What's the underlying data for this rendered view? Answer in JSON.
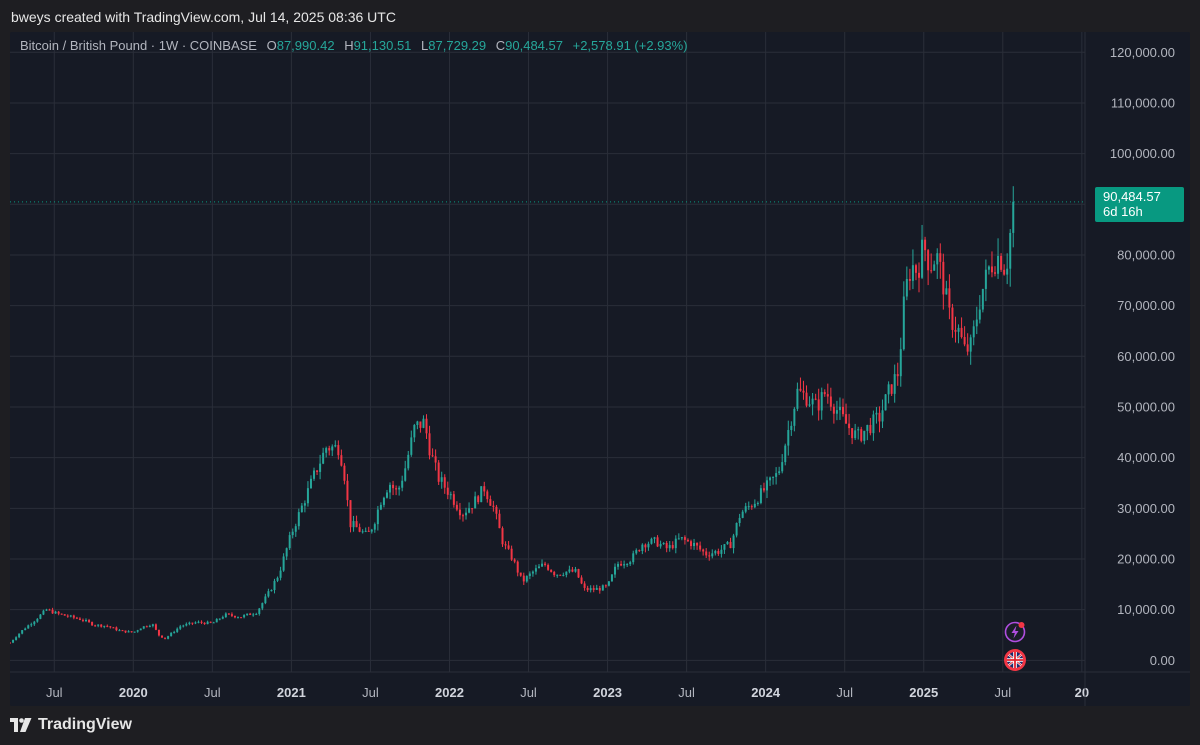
{
  "header": {
    "attribution": "bweys created with TradingView.com, Jul 14, 2025 08:36 UTC"
  },
  "legend": {
    "symbol": "Bitcoin / British Pound · 1W · COINBASE",
    "open_label": "O",
    "open": "87,990.42",
    "high_label": "H",
    "high": "91,130.51",
    "low_label": "L",
    "low": "87,729.29",
    "close_label": "C",
    "close": "90,484.57",
    "change": "+2,578.91 (+2.93%)"
  },
  "price_tag": {
    "price": "90,484.57",
    "countdown": "6d 16h"
  },
  "footer": {
    "brand": "TradingView"
  },
  "icons": {
    "events": "lightning-icon",
    "country": "uk-flag-icon"
  },
  "colors": {
    "up": "#26a69a",
    "down": "#f23645",
    "background": "#161a25",
    "grid": "#2a2e39",
    "tag": "#089981"
  },
  "chart_data": {
    "type": "candlestick",
    "title": "Bitcoin / British Pound · 1W · COINBASE",
    "x_ticks": [
      "Jul",
      "2020",
      "Jul",
      "2021",
      "Jul",
      "2022",
      "Jul",
      "2023",
      "Jul",
      "2024",
      "Jul",
      "2025",
      "Jul",
      "20"
    ],
    "x_tick_years": [
      2019.5,
      2020.0,
      2020.5,
      2021.0,
      2021.5,
      2022.0,
      2022.5,
      2023.0,
      2023.5,
      2024.0,
      2024.5,
      2025.0,
      2025.5,
      2026.0
    ],
    "y_ticks": [
      0,
      10000,
      20000,
      30000,
      40000,
      50000,
      60000,
      70000,
      80000,
      90000,
      100000,
      110000,
      120000
    ],
    "y_tick_labels": [
      "0.00",
      "10,000.00",
      "20,000.00",
      "30,000.00",
      "40,000.00",
      "50,000.00",
      "60,000.00",
      "70,000.00",
      "80,000.00",
      "90,000.00",
      "100,000.00",
      "110,000.00",
      "120,000.00"
    ],
    "ylim": [
      -2300,
      124000
    ],
    "xlim": [
      2019.22,
      2026.02
    ],
    "grid": true,
    "last_price": 90484.57,
    "close_path": [
      [
        2019.22,
        3500
      ],
      [
        2019.3,
        6000
      ],
      [
        2019.38,
        8000
      ],
      [
        2019.45,
        10000
      ],
      [
        2019.52,
        9200
      ],
      [
        2019.6,
        8600
      ],
      [
        2019.68,
        8000
      ],
      [
        2019.75,
        7000
      ],
      [
        2019.83,
        6800
      ],
      [
        2019.92,
        5800
      ],
      [
        2020.0,
        5500
      ],
      [
        2020.05,
        6500
      ],
      [
        2020.12,
        7200
      ],
      [
        2020.16,
        5000
      ],
      [
        2020.2,
        4300
      ],
      [
        2020.3,
        6800
      ],
      [
        2020.4,
        7500
      ],
      [
        2020.5,
        7300
      ],
      [
        2020.58,
        9000
      ],
      [
        2020.68,
        8600
      ],
      [
        2020.78,
        9500
      ],
      [
        2020.86,
        13500
      ],
      [
        2020.92,
        17000
      ],
      [
        2020.97,
        22000
      ],
      [
        2021.0,
        25000
      ],
      [
        2021.05,
        29000
      ],
      [
        2021.1,
        33000
      ],
      [
        2021.15,
        37000
      ],
      [
        2021.22,
        42000
      ],
      [
        2021.3,
        42000
      ],
      [
        2021.33,
        38000
      ],
      [
        2021.37,
        27000
      ],
      [
        2021.42,
        26000
      ],
      [
        2021.48,
        24500
      ],
      [
        2021.52,
        27000
      ],
      [
        2021.57,
        32000
      ],
      [
        2021.62,
        35000
      ],
      [
        2021.67,
        33000
      ],
      [
        2021.72,
        38000
      ],
      [
        2021.78,
        46000
      ],
      [
        2021.84,
        47000
      ],
      [
        2021.88,
        41000
      ],
      [
        2021.93,
        36000
      ],
      [
        2022.0,
        33000
      ],
      [
        2022.08,
        29000
      ],
      [
        2022.15,
        31000
      ],
      [
        2022.22,
        34000
      ],
      [
        2022.28,
        30000
      ],
      [
        2022.34,
        23000
      ],
      [
        2022.4,
        20000
      ],
      [
        2022.46,
        15500
      ],
      [
        2022.53,
        17500
      ],
      [
        2022.6,
        19000
      ],
      [
        2022.67,
        17000
      ],
      [
        2022.74,
        17500
      ],
      [
        2022.8,
        17500
      ],
      [
        2022.85,
        14000
      ],
      [
        2022.92,
        14000
      ],
      [
        2023.0,
        14500
      ],
      [
        2023.06,
        19000
      ],
      [
        2023.15,
        20000
      ],
      [
        2023.22,
        23000
      ],
      [
        2023.3,
        23500
      ],
      [
        2023.38,
        22000
      ],
      [
        2023.46,
        24000
      ],
      [
        2023.54,
        23000
      ],
      [
        2023.62,
        21000
      ],
      [
        2023.7,
        21500
      ],
      [
        2023.78,
        23000
      ],
      [
        2023.84,
        29000
      ],
      [
        2023.92,
        31000
      ],
      [
        2024.0,
        34000
      ],
      [
        2024.08,
        37000
      ],
      [
        2024.14,
        45000
      ],
      [
        2024.2,
        53000
      ],
      [
        2024.26,
        52000
      ],
      [
        2024.32,
        50000
      ],
      [
        2024.38,
        53000
      ],
      [
        2024.44,
        50000
      ],
      [
        2024.5,
        47000
      ],
      [
        2024.58,
        44000
      ],
      [
        2024.65,
        46000
      ],
      [
        2024.72,
        48000
      ],
      [
        2024.78,
        53000
      ],
      [
        2024.84,
        57000
      ],
      [
        2024.88,
        72000
      ],
      [
        2024.92,
        78000
      ],
      [
        2024.96,
        77000
      ],
      [
        2025.0,
        82000
      ],
      [
        2025.04,
        78000
      ],
      [
        2025.08,
        80000
      ],
      [
        2025.12,
        75000
      ],
      [
        2025.16,
        68000
      ],
      [
        2025.22,
        65000
      ],
      [
        2025.26,
        61000
      ],
      [
        2025.3,
        62000
      ],
      [
        2025.36,
        72000
      ],
      [
        2025.42,
        78000
      ],
      [
        2025.48,
        80000
      ],
      [
        2025.52,
        77000
      ],
      [
        2025.57,
        90484.57
      ]
    ]
  }
}
